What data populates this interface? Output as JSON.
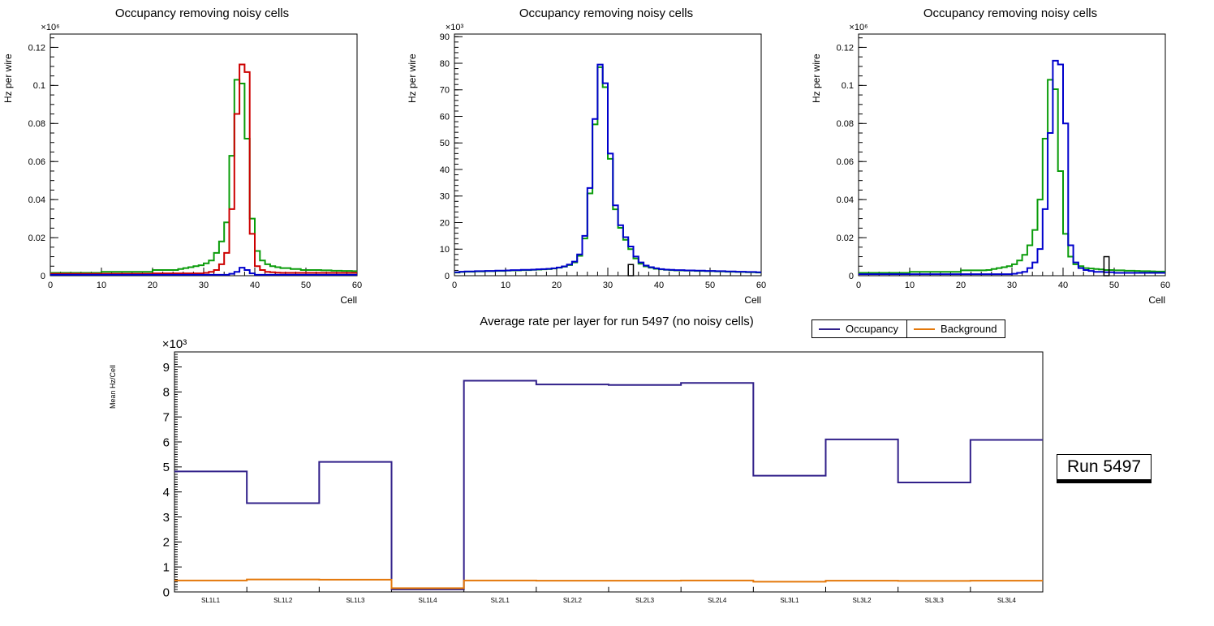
{
  "page": {
    "background": "#ffffff"
  },
  "annotations": {
    "run_label": "Run 5497"
  },
  "chart_data": [
    {
      "type": "step-histogram",
      "title": "Occupancy removing noisy cells",
      "xlabel": "Cell",
      "ylabel": "Hz per wire",
      "exponent": "×10⁶",
      "xlim": [
        0,
        60
      ],
      "ylim": [
        0,
        0.127
      ],
      "xticks": [
        0,
        10,
        20,
        30,
        40,
        50,
        60
      ],
      "x_minor_step": 2,
      "yticks": [
        0,
        0.02,
        0.04,
        0.06,
        0.08,
        0.1,
        0.12
      ],
      "y_minor_divs": 4,
      "grid": false,
      "legend_position": "none",
      "series": [
        {
          "name": "green",
          "color": "#0a9c0a",
          "values": [
            0.0015,
            0.0015,
            0.0015,
            0.0015,
            0.0015,
            0.0015,
            0.0015,
            0.0015,
            0.0015,
            0.0015,
            0.002,
            0.002,
            0.002,
            0.002,
            0.002,
            0.002,
            0.002,
            0.002,
            0.002,
            0.002,
            0.003,
            0.003,
            0.003,
            0.003,
            0.003,
            0.0035,
            0.004,
            0.0045,
            0.005,
            0.0055,
            0.0065,
            0.008,
            0.012,
            0.018,
            0.028,
            0.063,
            0.103,
            0.101,
            0.072,
            0.03,
            0.013,
            0.008,
            0.006,
            0.005,
            0.0045,
            0.004,
            0.004,
            0.0035,
            0.0035,
            0.003,
            0.003,
            0.003,
            0.003,
            0.0028,
            0.0028,
            0.0026,
            0.0026,
            0.0025,
            0.0025,
            0.0024
          ]
        },
        {
          "name": "red",
          "color": "#cc0000",
          "values": [
            0.001,
            0.001,
            0.001,
            0.001,
            0.001,
            0.001,
            0.001,
            0.001,
            0.001,
            0.001,
            0.001,
            0.001,
            0.001,
            0.001,
            0.001,
            0.001,
            0.001,
            0.001,
            0.001,
            0.001,
            0.0012,
            0.0012,
            0.0012,
            0.0012,
            0.0012,
            0.0012,
            0.0012,
            0.0012,
            0.0012,
            0.0012,
            0.0015,
            0.002,
            0.003,
            0.006,
            0.012,
            0.035,
            0.085,
            0.111,
            0.107,
            0.022,
            0.005,
            0.003,
            0.002,
            0.0018,
            0.0016,
            0.0015,
            0.0015,
            0.0015,
            0.0015,
            0.0015,
            0.0015,
            0.0015,
            0.0015,
            0.0015,
            0.0015,
            0.0015,
            0.0015,
            0.0015,
            0.0015,
            0.0015
          ]
        },
        {
          "name": "blue",
          "color": "#0000cc",
          "values": [
            0.0005,
            0.0005,
            0.0005,
            0.0005,
            0.0005,
            0.0005,
            0.0005,
            0.0005,
            0.0005,
            0.0005,
            0.0005,
            0.0005,
            0.0005,
            0.0005,
            0.0005,
            0.0005,
            0.0005,
            0.0005,
            0.0005,
            0.0005,
            0.0005,
            0.0005,
            0.0005,
            0.0005,
            0.0005,
            0.0005,
            0.0005,
            0.0005,
            0.0005,
            0.0005,
            0.0005,
            0.0005,
            0.0005,
            0.0005,
            0.0005,
            0.001,
            0.002,
            0.0042,
            0.003,
            0.0012,
            0.0005,
            0.0005,
            0.0005,
            0.0005,
            0.0005,
            0.0005,
            0.0005,
            0.0005,
            0.0005,
            0.0005,
            0.0005,
            0.0005,
            0.0005,
            0.0005,
            0.0005,
            0.0005,
            0.0005,
            0.0005,
            0.0005,
            0.0005
          ]
        }
      ]
    },
    {
      "type": "step-histogram",
      "title": "Occupancy removing noisy cells",
      "xlabel": "Cell",
      "ylabel": "Hz per wire",
      "exponent": "×10³",
      "xlim": [
        0,
        60
      ],
      "ylim": [
        0,
        91
      ],
      "xticks": [
        0,
        10,
        20,
        30,
        40,
        50,
        60
      ],
      "x_minor_step": 2,
      "yticks": [
        0,
        10,
        20,
        30,
        40,
        50,
        60,
        70,
        80,
        90
      ],
      "y_minor_divs": 5,
      "grid": false,
      "legend_position": "none",
      "series": [
        {
          "name": "green",
          "color": "#0a9c0a",
          "values": [
            1.2,
            1.4,
            1.5,
            1.5,
            1.6,
            1.6,
            1.7,
            1.7,
            1.8,
            1.8,
            1.9,
            2,
            2,
            2.1,
            2.1,
            2.2,
            2.3,
            2.4,
            2.5,
            2.7,
            3,
            3.4,
            4,
            5,
            7.5,
            14,
            31,
            57,
            78.5,
            71,
            44,
            25,
            18,
            13.5,
            10,
            6.5,
            4.5,
            3.5,
            3,
            2.6,
            2.4,
            2.2,
            2.1,
            2,
            2,
            1.9,
            1.9,
            1.8,
            1.8,
            1.7,
            1.7,
            1.6,
            1.6,
            1.5,
            1.5,
            1.4,
            1.4,
            1.3,
            1.3,
            1.2
          ]
        },
        {
          "name": "blue",
          "color": "#0000cc",
          "values": [
            1.3,
            1.5,
            1.6,
            1.6,
            1.7,
            1.7,
            1.8,
            1.8,
            1.9,
            1.9,
            2,
            2.1,
            2.1,
            2.2,
            2.2,
            2.3,
            2.4,
            2.5,
            2.6,
            2.8,
            3.1,
            3.5,
            4.2,
            5.3,
            8,
            15,
            33,
            59,
            79.5,
            72.5,
            46,
            26.5,
            19,
            14.5,
            11,
            7.2,
            5,
            3.8,
            3.2,
            2.8,
            2.5,
            2.3,
            2.2,
            2.1,
            2.1,
            2,
            2,
            1.9,
            1.9,
            1.8,
            1.8,
            1.7,
            1.7,
            1.6,
            1.6,
            1.5,
            1.5,
            1.4,
            1.4,
            1.3
          ]
        },
        {
          "name": "black",
          "color": "#000000",
          "style": "box",
          "values": [
            0,
            0,
            0,
            0,
            0,
            0,
            0,
            0,
            0,
            0,
            0,
            0,
            0,
            0,
            0,
            0,
            0,
            0,
            0,
            0,
            0,
            0,
            0,
            0,
            0,
            0,
            0,
            0,
            0,
            0,
            0,
            0,
            0,
            0,
            4.2,
            0,
            0,
            0,
            0,
            0,
            0,
            0,
            0,
            0,
            0,
            0,
            0,
            0,
            0,
            0,
            0,
            0,
            0,
            0,
            0,
            0,
            0,
            0,
            0,
            0
          ]
        }
      ]
    },
    {
      "type": "step-histogram",
      "title": "Occupancy removing noisy cells",
      "xlabel": "Cell",
      "ylabel": "Hz per wire",
      "exponent": "×10⁶",
      "xlim": [
        0,
        60
      ],
      "ylim": [
        0,
        0.127
      ],
      "xticks": [
        0,
        10,
        20,
        30,
        40,
        50,
        60
      ],
      "x_minor_step": 2,
      "yticks": [
        0,
        0.02,
        0.04,
        0.06,
        0.08,
        0.1,
        0.12
      ],
      "y_minor_divs": 4,
      "grid": false,
      "legend_position": "none",
      "series": [
        {
          "name": "green",
          "color": "#0a9c0a",
          "values": [
            0.0015,
            0.0015,
            0.0015,
            0.0015,
            0.0015,
            0.0015,
            0.0015,
            0.0015,
            0.0015,
            0.0015,
            0.002,
            0.002,
            0.002,
            0.002,
            0.002,
            0.002,
            0.002,
            0.002,
            0.002,
            0.002,
            0.0028,
            0.0028,
            0.0028,
            0.0028,
            0.0028,
            0.003,
            0.0035,
            0.004,
            0.0045,
            0.005,
            0.006,
            0.008,
            0.011,
            0.016,
            0.024,
            0.04,
            0.072,
            0.103,
            0.098,
            0.055,
            0.022,
            0.01,
            0.006,
            0.005,
            0.004,
            0.0038,
            0.0035,
            0.0033,
            0.003,
            0.003,
            0.0028,
            0.0028,
            0.0026,
            0.0026,
            0.0025,
            0.0024,
            0.0024,
            0.0023,
            0.0022,
            0.0022
          ]
        },
        {
          "name": "blue",
          "color": "#0000cc",
          "values": [
            0.0008,
            0.0008,
            0.0008,
            0.0008,
            0.0008,
            0.0008,
            0.0008,
            0.0008,
            0.0008,
            0.0008,
            0.0008,
            0.0008,
            0.0008,
            0.0008,
            0.0008,
            0.0008,
            0.0008,
            0.0008,
            0.0008,
            0.0008,
            0.0008,
            0.0008,
            0.0008,
            0.0008,
            0.0008,
            0.0008,
            0.0008,
            0.0008,
            0.0008,
            0.0008,
            0.001,
            0.0015,
            0.002,
            0.004,
            0.007,
            0.014,
            0.035,
            0.075,
            0.113,
            0.111,
            0.08,
            0.016,
            0.007,
            0.004,
            0.003,
            0.0025,
            0.002,
            0.002,
            0.0018,
            0.0018,
            0.0015,
            0.0015,
            0.0015,
            0.0015,
            0.0015,
            0.0015,
            0.0015,
            0.0015,
            0.0015,
            0.0015
          ]
        },
        {
          "name": "black",
          "color": "#000000",
          "style": "box",
          "values": [
            0,
            0,
            0,
            0,
            0,
            0,
            0,
            0,
            0,
            0,
            0,
            0,
            0,
            0,
            0,
            0,
            0,
            0,
            0,
            0,
            0,
            0,
            0,
            0,
            0,
            0,
            0,
            0,
            0,
            0,
            0,
            0,
            0,
            0,
            0,
            0,
            0,
            0,
            0,
            0,
            0,
            0,
            0,
            0,
            0,
            0,
            0,
            0,
            0.01,
            0,
            0,
            0,
            0,
            0,
            0,
            0,
            0,
            0,
            0,
            0
          ]
        }
      ]
    },
    {
      "type": "step-category",
      "title": "Average rate per layer for run 5497 (no noisy cells)",
      "xlabel": "",
      "ylabel": "Mean Hz/Cell",
      "exponent": "×10³",
      "categories": [
        "SL1L1",
        "SL1L2",
        "SL1L3",
        "SL1L4",
        "SL2L1",
        "SL2L2",
        "SL2L3",
        "SL2L4",
        "SL3L1",
        "SL3L2",
        "SL3L3",
        "SL3L4"
      ],
      "ylim": [
        0,
        9.6
      ],
      "yticks": [
        0,
        1,
        2,
        3,
        4,
        5,
        6,
        7,
        8,
        9
      ],
      "y_minor_divs": 10,
      "grid": false,
      "legend_position": "top-right",
      "series": [
        {
          "name": "Occupancy",
          "color": "#31208a",
          "values": [
            4.82,
            3.55,
            5.2,
            0.1,
            8.45,
            8.3,
            8.28,
            8.36,
            4.65,
            6.1,
            4.38,
            6.08
          ]
        },
        {
          "name": "Background",
          "color": "#e4780a",
          "values": [
            0.46,
            0.5,
            0.49,
            0.15,
            0.46,
            0.45,
            0.45,
            0.46,
            0.41,
            0.45,
            0.44,
            0.45
          ]
        }
      ]
    }
  ]
}
